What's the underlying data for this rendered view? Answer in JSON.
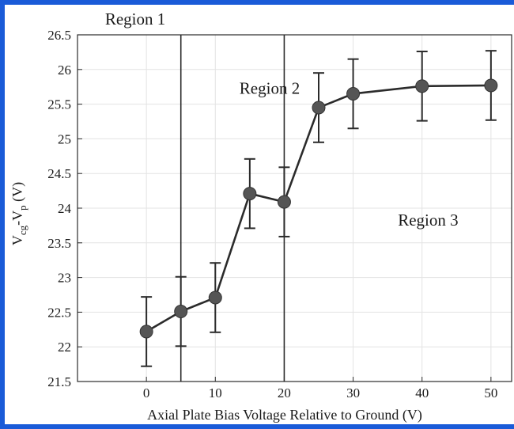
{
  "chart_data": {
    "type": "line",
    "title": "",
    "xlabel": "Axial Plate Bias Voltage Relative to Ground (V)",
    "ylabel_parts": [
      "V",
      "cg",
      "-V",
      "p",
      " (V)"
    ],
    "xlim": [
      -10,
      53
    ],
    "ylim": [
      21.5,
      26.5
    ],
    "x_ticks": [
      0,
      10,
      20,
      30,
      40,
      50
    ],
    "y_ticks": [
      21.5,
      22,
      22.5,
      23,
      23.5,
      24,
      24.5,
      25,
      25.5,
      26,
      26.5
    ],
    "x_tick_labels": [
      "0",
      "10",
      "20",
      "30",
      "40",
      "50"
    ],
    "y_tick_labels": [
      "21.5",
      "22",
      "22.5",
      "23",
      "23.5",
      "24",
      "24.5",
      "25",
      "25.5",
      "26",
      "26.5"
    ],
    "grid": true,
    "colors": {
      "line": "#2b2b2b",
      "marker": "#555555",
      "grid": "#e3e3e3",
      "frame": "#1a5bd8"
    },
    "series": [
      {
        "x": [
          0,
          5,
          10,
          15,
          20,
          25,
          30,
          40,
          50
        ],
        "y": [
          22.22,
          22.51,
          22.71,
          24.21,
          24.09,
          25.45,
          25.65,
          25.76,
          25.77
        ],
        "error": [
          0.5,
          0.5,
          0.5,
          0.5,
          0.5,
          0.5,
          0.5,
          0.5,
          0.5
        ]
      }
    ],
    "vlines": [
      5,
      20
    ],
    "annotations": [
      {
        "text": "Region 1",
        "x": -6,
        "y": 26.73
      },
      {
        "text": "Region 2",
        "x": 13.5,
        "y": 25.73
      },
      {
        "text": "Region 3",
        "x": 36.5,
        "y": 23.83
      }
    ]
  }
}
